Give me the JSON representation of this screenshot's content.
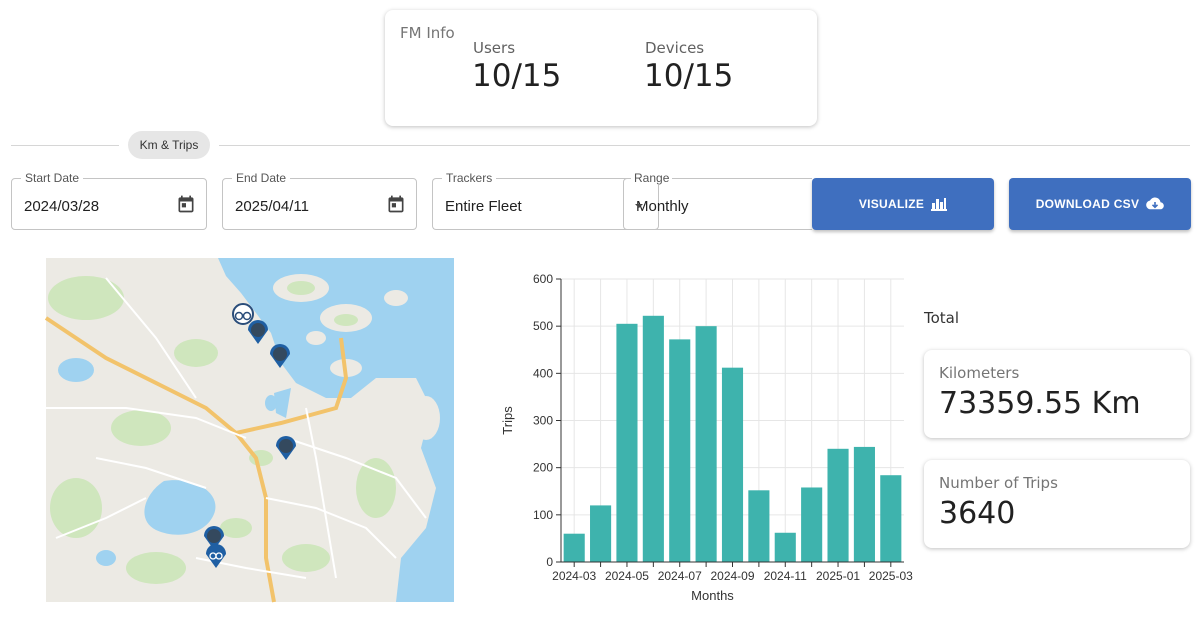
{
  "fm_info": {
    "title": "FM Info",
    "users_label": "Users",
    "users_value": "10/15",
    "devices_label": "Devices",
    "devices_value": "10/15"
  },
  "section_chip": "Km & Trips",
  "filters": {
    "start_date": {
      "label": "Start Date",
      "value": "2024/03/28",
      "icon": "calendar-icon"
    },
    "end_date": {
      "label": "End Date",
      "value": "2025/04/11",
      "icon": "calendar-icon"
    },
    "trackers": {
      "label": "Trackers",
      "value": "Entire Fleet"
    },
    "range": {
      "label": "Range",
      "value": "Monthly"
    }
  },
  "buttons": {
    "visualize": {
      "label": "VISUALIZE",
      "icon": "bar-chart-icon"
    },
    "download": {
      "label": "DOWNLOAD CSV",
      "icon": "cloud-download-icon"
    }
  },
  "totals": {
    "label": "Total",
    "kilometers_label": "Kilometers",
    "kilometers_value": "73359.55 Km",
    "trips_label": "Number of Trips",
    "trips_value": "3640"
  },
  "map": {
    "markers": [
      "bike-icon",
      "tracker-icon",
      "tracker-icon",
      "tracker-icon",
      "tracker-icon",
      "bike-icon"
    ]
  },
  "colors": {
    "primary_button": "#3f6fbf",
    "bar": "#3eb3ad",
    "water": "#9fd2f0"
  },
  "chart_data": {
    "type": "bar",
    "categories": [
      "2024-03",
      "2024-04",
      "2024-05",
      "2024-06",
      "2024-07",
      "2024-08",
      "2024-09",
      "2024-10",
      "2024-11",
      "2024-12",
      "2025-01",
      "2025-02",
      "2025-03"
    ],
    "tick_labels": [
      "2024-03",
      "2024-05",
      "2024-07",
      "2024-09",
      "2024-11",
      "2025-01",
      "2025-03"
    ],
    "values": [
      60,
      120,
      505,
      522,
      472,
      500,
      412,
      152,
      62,
      158,
      240,
      244,
      184
    ],
    "xlabel": "Months",
    "ylabel": "Trips",
    "ylim": [
      0,
      600
    ],
    "yticks": [
      0,
      100,
      200,
      300,
      400,
      500,
      600
    ],
    "grid": true
  }
}
